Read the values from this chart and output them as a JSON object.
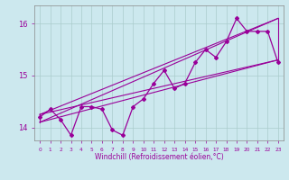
{
  "xlabel": "Windchill (Refroidissement éolien,°C)",
  "bg_color": "#cce8ee",
  "grid_color": "#aacccc",
  "line_color": "#990099",
  "x_data": [
    0,
    1,
    2,
    3,
    4,
    5,
    6,
    7,
    8,
    9,
    10,
    11,
    12,
    13,
    14,
    15,
    16,
    17,
    18,
    19,
    20,
    21,
    22,
    23
  ],
  "y_data": [
    14.2,
    14.35,
    14.15,
    13.85,
    14.4,
    14.4,
    14.35,
    13.95,
    13.85,
    14.4,
    14.55,
    14.85,
    15.1,
    14.75,
    14.85,
    15.25,
    15.5,
    15.35,
    15.65,
    16.1,
    15.85,
    15.85,
    15.85,
    15.25
  ],
  "ylim": [
    13.75,
    16.35
  ],
  "xlim": [
    -0.5,
    23.5
  ],
  "yticks": [
    14,
    15,
    16
  ],
  "xticks": [
    0,
    1,
    2,
    3,
    4,
    5,
    6,
    7,
    8,
    9,
    10,
    11,
    12,
    13,
    14,
    15,
    16,
    17,
    18,
    19,
    20,
    21,
    22,
    23
  ],
  "env_corners": {
    "top_left_x": 0,
    "top_left_y": 14.25,
    "top_right_x": 23,
    "top_right_y": 16.1,
    "bot_left_x": 0,
    "bot_left_y": 14.1,
    "bot_right_x": 23,
    "bot_right_y": 15.3
  }
}
